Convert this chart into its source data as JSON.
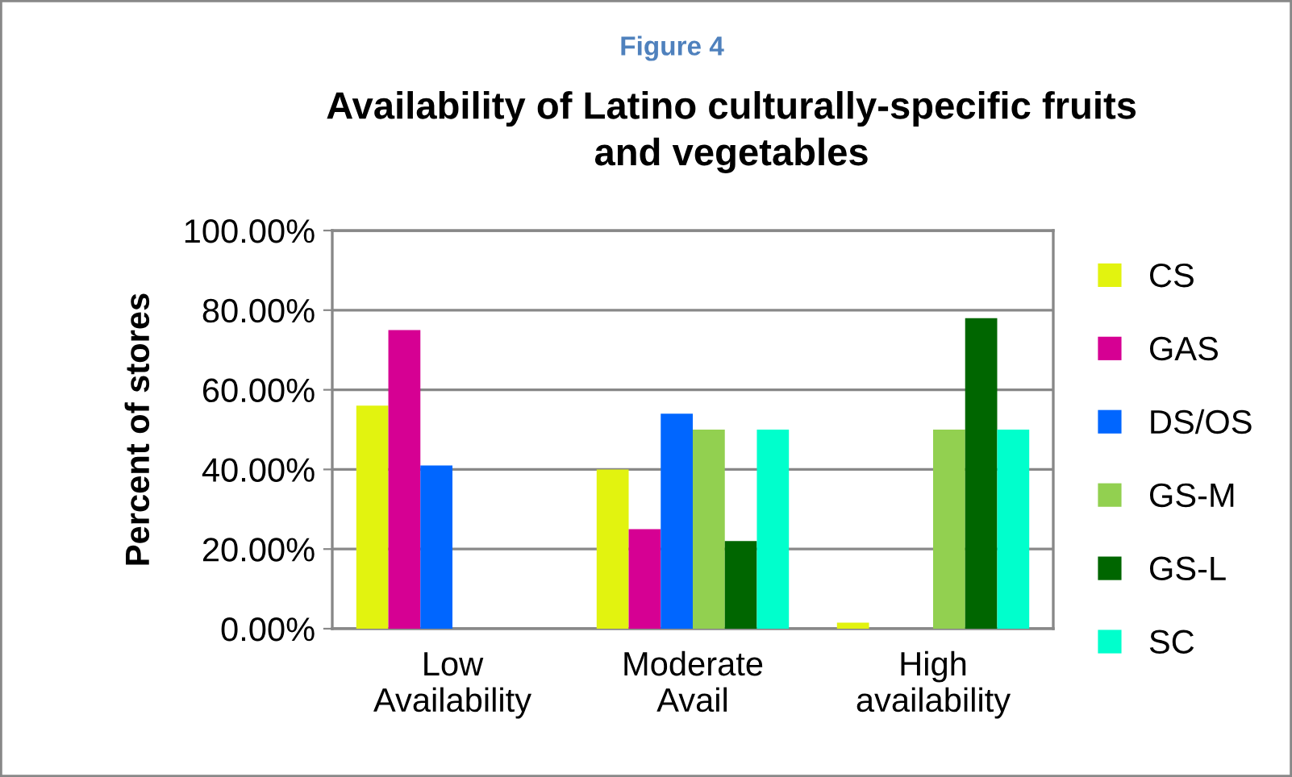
{
  "chart_data": {
    "type": "bar",
    "title": "Availability of Latino culturally-specific fruits\nand vegetables",
    "annotations": [
      "Figure 4"
    ],
    "ylabel": "Percent of stores",
    "categories": [
      "Low\nAvailability",
      "Moderate\nAvail",
      "High\navailability"
    ],
    "series": [
      {
        "name": "CS",
        "color": "#e2f30f",
        "values": [
          56,
          40,
          1.5
        ]
      },
      {
        "name": "GAS",
        "color": "#d60093",
        "values": [
          75,
          25,
          0
        ]
      },
      {
        "name": "DS/OS",
        "color": "#0066ff",
        "values": [
          41,
          54,
          0
        ]
      },
      {
        "name": "GS-M",
        "color": "#92d050",
        "values": [
          0,
          50,
          50
        ]
      },
      {
        "name": "GS-L",
        "color": "#006600",
        "values": [
          0,
          22,
          78
        ]
      },
      {
        "name": "SC",
        "color": "#00ffcc",
        "values": [
          0,
          50,
          50
        ]
      }
    ],
    "ylim": [
      0,
      100
    ],
    "yticks": [
      {
        "value": 0,
        "label": "0.00%"
      },
      {
        "value": 20,
        "label": "20.00%"
      },
      {
        "value": 40,
        "label": "40.00%"
      },
      {
        "value": 60,
        "label": "60.00%"
      },
      {
        "value": 80,
        "label": "80.00%"
      },
      {
        "value": 100,
        "label": "100.00%"
      }
    ],
    "grid": "y",
    "legend": "right"
  }
}
